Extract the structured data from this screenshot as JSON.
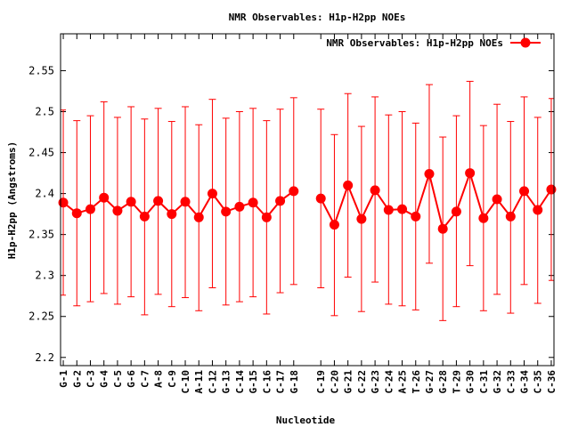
{
  "chart_data": {
    "type": "line",
    "title": "NMR Observables: H1p-H2pp NOEs",
    "xlabel": "Nucleotide",
    "ylabel": "H1p-H2pp (Angstroms)",
    "ylim": [
      2.19,
      2.595
    ],
    "yticks": [
      "2.2",
      "2.25",
      "2.3",
      "2.35",
      "2.4",
      "2.45",
      "2.5",
      "2.55"
    ],
    "yticks_values": [
      2.2,
      2.25,
      2.3,
      2.35,
      2.4,
      2.45,
      2.5,
      2.55
    ],
    "legend_position": "top-right",
    "grid": false,
    "color": "#ff0000",
    "x_positions": [
      1,
      2,
      3,
      4,
      5,
      6,
      7,
      8,
      9,
      10,
      11,
      12,
      13,
      14,
      15,
      16,
      17,
      18,
      20,
      21,
      22,
      23,
      24,
      25,
      26,
      27,
      28,
      29,
      30,
      31,
      32,
      33,
      34,
      35,
      36,
      37
    ],
    "categories": [
      "G-1",
      "G-2",
      "C-3",
      "G-4",
      "C-5",
      "G-6",
      "C-7",
      "A-8",
      "C-9",
      "C-10",
      "A-11",
      "C-12",
      "G-13",
      "C-14",
      "G-15",
      "C-16",
      "C-17",
      "G-18",
      "C-19",
      "C-20",
      "G-21",
      "C-22",
      "G-23",
      "C-24",
      "A-25",
      "T-26",
      "G-27",
      "G-28",
      "T-29",
      "G-30",
      "C-31",
      "G-32",
      "C-33",
      "G-34",
      "C-35",
      "C-36"
    ],
    "segments": [
      [
        0,
        17
      ],
      [
        18,
        35
      ]
    ],
    "series": [
      {
        "name": "NMR Observables: H1p-H2pp NOEs",
        "values": [
          2.389,
          2.376,
          2.381,
          2.395,
          2.379,
          2.39,
          2.372,
          2.391,
          2.375,
          2.39,
          2.371,
          2.4,
          2.378,
          2.384,
          2.389,
          2.371,
          2.391,
          2.403,
          2.394,
          2.362,
          2.41,
          2.369,
          2.404,
          2.38,
          2.381,
          2.372,
          2.424,
          2.357,
          2.378,
          2.425,
          2.37,
          2.393,
          2.372,
          2.403,
          2.38,
          2.405
        ],
        "error_low": [
          2.276,
          2.263,
          2.268,
          2.278,
          2.265,
          2.274,
          2.252,
          2.277,
          2.262,
          2.273,
          2.257,
          2.285,
          2.264,
          2.268,
          2.274,
          2.253,
          2.279,
          2.289,
          2.285,
          2.251,
          2.298,
          2.256,
          2.292,
          2.265,
          2.263,
          2.258,
          2.315,
          2.245,
          2.262,
          2.312,
          2.257,
          2.277,
          2.254,
          2.289,
          2.266,
          2.294
        ],
        "error_high": [
          2.502,
          2.489,
          2.495,
          2.512,
          2.493,
          2.506,
          2.491,
          2.504,
          2.488,
          2.506,
          2.484,
          2.515,
          2.492,
          2.5,
          2.504,
          2.489,
          2.503,
          2.517,
          2.503,
          2.472,
          2.522,
          2.482,
          2.518,
          2.496,
          2.5,
          2.486,
          2.533,
          2.469,
          2.495,
          2.537,
          2.483,
          2.509,
          2.488,
          2.518,
          2.493,
          2.516
        ]
      }
    ]
  }
}
